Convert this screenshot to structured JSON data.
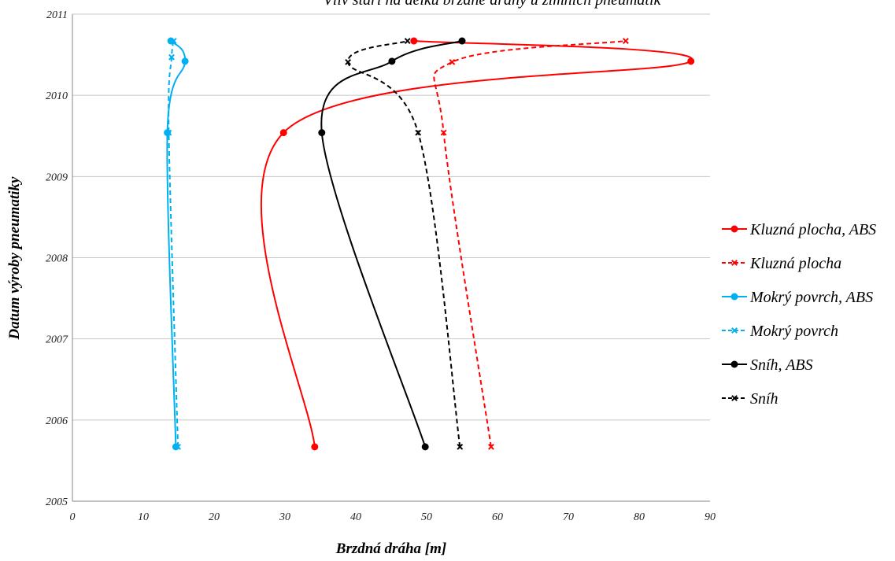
{
  "chart_data": {
    "type": "line",
    "title": "Vliv stáří na délku brzdné dráhy u zimních pneumatik",
    "xlabel": "Brzdná dráha [m]",
    "ylabel": "Datum výroby pneumatiky",
    "xlim": [
      0,
      90
    ],
    "ylim": [
      2005,
      2011
    ],
    "x_ticks": [
      "0",
      "10",
      "20",
      "30",
      "40",
      "50",
      "60",
      "70",
      "80",
      "90"
    ],
    "y_ticks": [
      "2005",
      "2006",
      "2007",
      "2008",
      "2009",
      "2010",
      "2011"
    ],
    "grid": "horizontal",
    "legend_position": "right",
    "series": [
      {
        "name": "Kluzná plocha, ABS",
        "color": "#ff0000",
        "dash": "solid",
        "marker": "circle",
        "points": [
          [
            34.2,
            2005.67
          ],
          [
            29.8,
            2009.54
          ],
          [
            87.3,
            2010.42
          ],
          [
            48.2,
            2010.67
          ]
        ]
      },
      {
        "name": "Kluzná plocha",
        "color": "#ff0000",
        "dash": "dashed",
        "marker": "x",
        "points": [
          [
            59.1,
            2005.67
          ],
          [
            52.4,
            2009.54
          ],
          [
            53.6,
            2010.41
          ],
          [
            78.1,
            2010.67
          ]
        ]
      },
      {
        "name": "Mokrý povrch, ABS",
        "color": "#00b0f0",
        "dash": "solid",
        "marker": "circle",
        "points": [
          [
            14.6,
            2005.67
          ],
          [
            13.4,
            2009.54
          ],
          [
            15.9,
            2010.42
          ],
          [
            13.9,
            2010.67
          ]
        ]
      },
      {
        "name": "Mokrý povrch",
        "color": "#00b0f0",
        "dash": "dashed",
        "marker": "x",
        "points": [
          [
            14.9,
            2005.67
          ],
          [
            13.6,
            2009.54
          ],
          [
            14.0,
            2010.47
          ],
          [
            14.3,
            2010.67
          ]
        ]
      },
      {
        "name": "Sníh, ABS",
        "color": "#000000",
        "dash": "solid",
        "marker": "circle",
        "points": [
          [
            49.8,
            2005.67
          ],
          [
            35.2,
            2009.54
          ],
          [
            45.1,
            2010.42
          ],
          [
            55.0,
            2010.67
          ]
        ]
      },
      {
        "name": "Sníh",
        "color": "#000000",
        "dash": "dashed",
        "marker": "x",
        "points": [
          [
            54.7,
            2005.67
          ],
          [
            48.8,
            2009.54
          ],
          [
            38.9,
            2010.41
          ],
          [
            47.3,
            2010.67
          ]
        ]
      }
    ]
  }
}
